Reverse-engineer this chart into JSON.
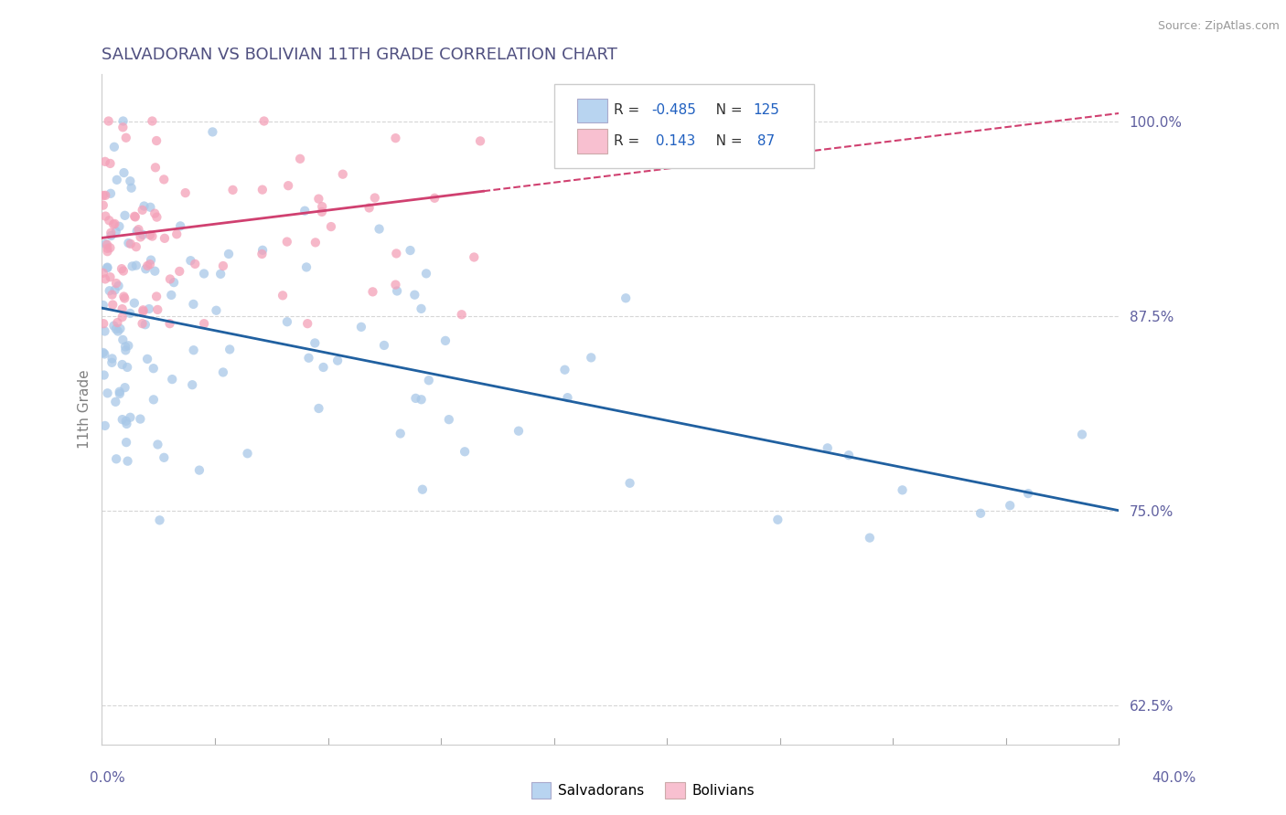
{
  "title": "SALVADORAN VS BOLIVIAN 11TH GRADE CORRELATION CHART",
  "source": "Source: ZipAtlas.com",
  "ylabel": "11th Grade",
  "xlim": [
    0.0,
    40.0
  ],
  "ylim": [
    60.0,
    103.0
  ],
  "yticks": [
    62.5,
    75.0,
    87.5,
    100.0
  ],
  "ytick_labels": [
    "62.5%",
    "75.0%",
    "87.5%",
    "100.0%"
  ],
  "blue_R": -0.485,
  "blue_N": 125,
  "pink_R": 0.143,
  "pink_N": 87,
  "blue_color": "#a8c8e8",
  "pink_color": "#f4a0b8",
  "blue_line_color": "#2060a0",
  "pink_line_color": "#d04070",
  "background_color": "#ffffff",
  "grid_color": "#cccccc",
  "legend_blue_fill": "#b8d4f0",
  "legend_pink_fill": "#f8c0d0",
  "title_color": "#505080",
  "tick_color": "#6060a0",
  "ylabel_color": "#808080",
  "source_color": "#999999"
}
